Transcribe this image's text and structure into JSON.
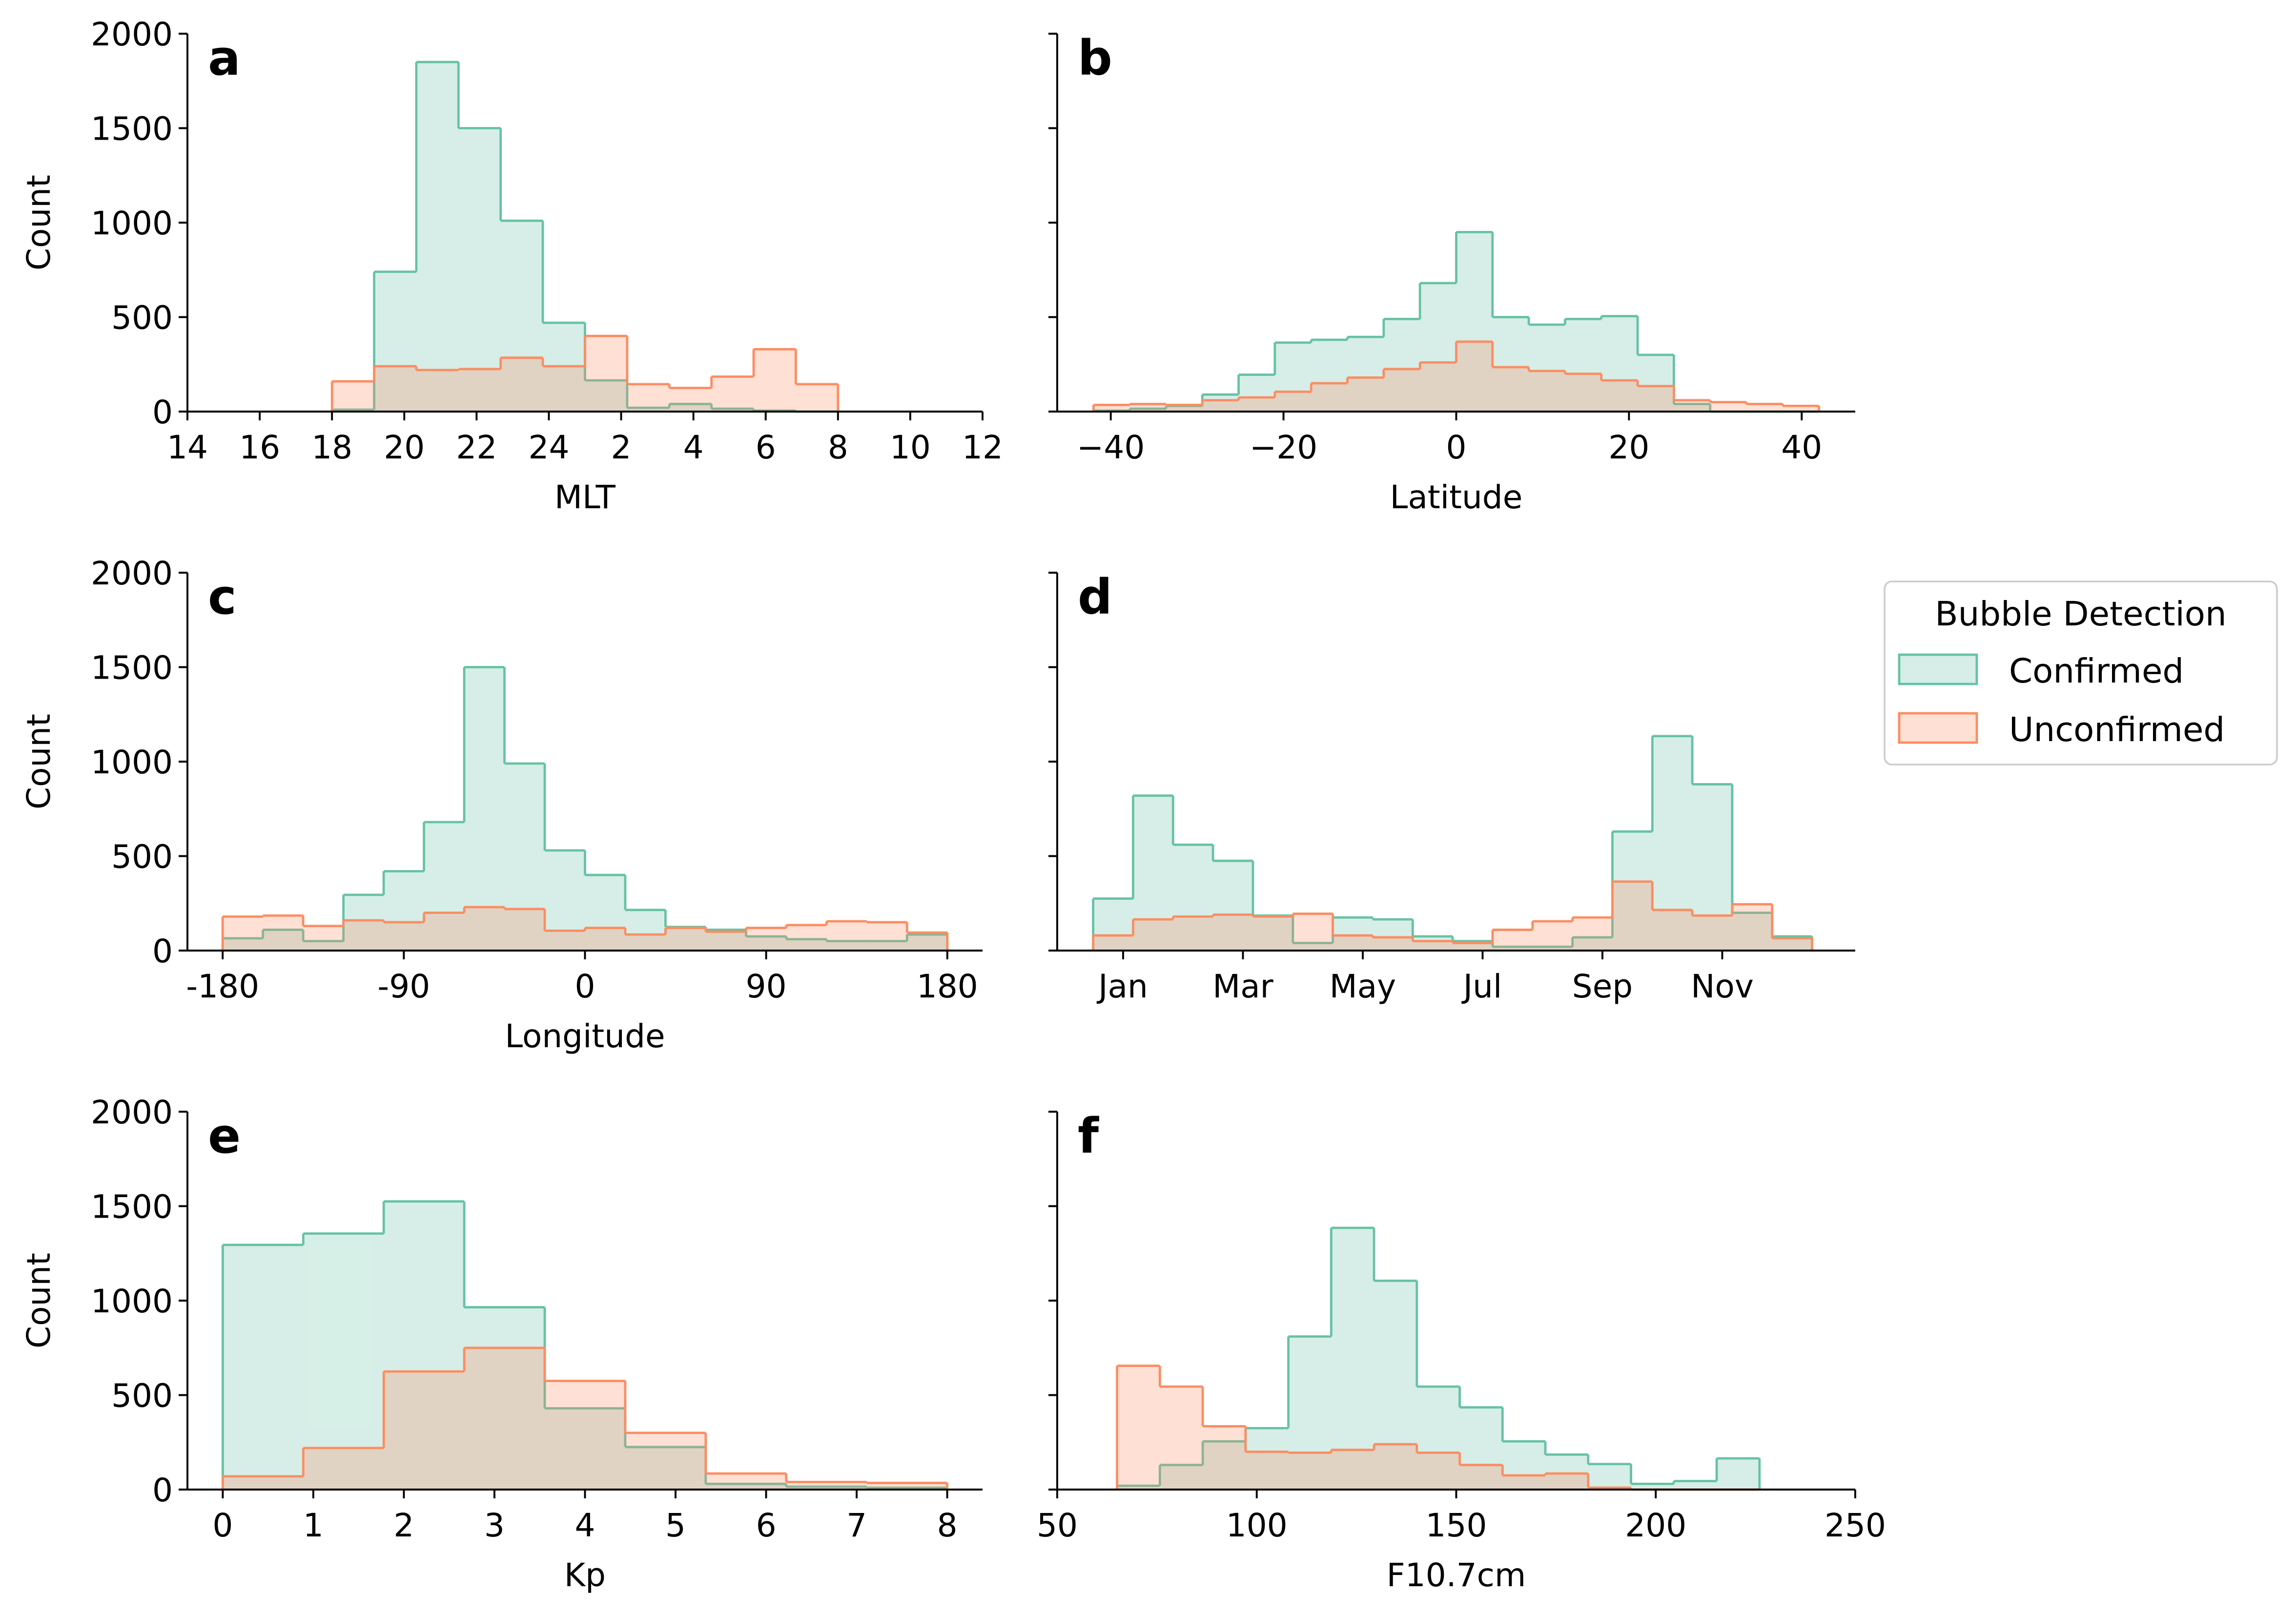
{
  "chart_data": [
    {
      "type": "histogram",
      "label": "a",
      "xlabel": "MLT",
      "ylabel": "Count",
      "bins": [
        18,
        19.1667,
        20.3333,
        21.5,
        22.6667,
        23.8333,
        25,
        26.1667,
        27.3333,
        28.5,
        29.6667,
        30.8333,
        32
      ],
      "series": [
        {
          "name": "Confirmed",
          "color": "#66c2a5",
          "values": [
            10,
            740,
            1850,
            1500,
            1010,
            470,
            165,
            20,
            40,
            15,
            5,
            0
          ]
        },
        {
          "name": "Unconfirmed",
          "color": "#fc8d62",
          "values": [
            160,
            240,
            220,
            225,
            285,
            240,
            400,
            145,
            125,
            185,
            330,
            145
          ]
        }
      ],
      "xlim": [
        14,
        36
      ],
      "xticks": [
        14,
        16,
        18,
        20,
        22,
        24,
        {
          "value": 26,
          "label": "2"
        },
        {
          "value": 28,
          "label": "4"
        },
        {
          "value": 30,
          "label": "6"
        },
        {
          "value": 32,
          "label": "8"
        },
        {
          "value": 34,
          "label": "10"
        },
        {
          "value": 36,
          "label": "12"
        }
      ],
      "ylim": [
        0,
        2000
      ],
      "yticks": [
        0,
        500,
        1000,
        1500,
        2000
      ]
    },
    {
      "type": "histogram",
      "label": "b",
      "xlabel": "Latitude",
      "sharey": true,
      "bins": [
        -42,
        -37.8,
        -33.6,
        -29.4,
        -25.2,
        -21,
        -16.8,
        -12.6,
        -8.4,
        -4.2,
        0,
        4.2,
        8.4,
        12.6,
        16.8,
        21,
        25.2,
        29.4,
        33.6,
        37.8,
        42
      ],
      "series": [
        {
          "name": "Confirmed",
          "color": "#66c2a5",
          "values": [
            5,
            15,
            30,
            90,
            195,
            365,
            380,
            395,
            490,
            680,
            950,
            500,
            460,
            490,
            505,
            300,
            40,
            0,
            0,
            0
          ]
        },
        {
          "name": "Unconfirmed",
          "color": "#fc8d62",
          "values": [
            35,
            40,
            35,
            60,
            75,
            105,
            150,
            180,
            225,
            260,
            370,
            235,
            215,
            200,
            165,
            135,
            60,
            50,
            40,
            30
          ]
        }
      ],
      "xlim": [
        -46.2,
        46.2
      ],
      "xticks": [
        {
          "value": -40,
          "label": "−40"
        },
        {
          "value": -20,
          "label": "−20"
        },
        0,
        20,
        40
      ],
      "ylim": [
        0,
        2000
      ],
      "yticks": [
        0,
        500,
        1000,
        1500,
        2000
      ]
    },
    {
      "type": "histogram",
      "label": "c",
      "xlabel": "Longitude",
      "ylabel": "Count",
      "bins": [
        -180,
        -160,
        -140,
        -120,
        -100,
        -80,
        -60,
        -40,
        -20,
        0,
        20,
        40,
        60,
        80,
        100,
        120,
        140,
        160,
        180
      ],
      "series": [
        {
          "name": "Confirmed",
          "color": "#66c2a5",
          "values": [
            65,
            110,
            50,
            295,
            420,
            680,
            1500,
            990,
            530,
            400,
            215,
            125,
            110,
            75,
            60,
            50,
            50,
            85
          ]
        },
        {
          "name": "Unconfirmed",
          "color": "#fc8d62",
          "values": [
            180,
            185,
            130,
            160,
            150,
            200,
            230,
            220,
            105,
            120,
            85,
            120,
            100,
            120,
            135,
            155,
            150,
            95
          ]
        }
      ],
      "xlim": [
        -197.5,
        197.5
      ],
      "xticks": [
        -180,
        -90,
        0,
        90,
        180
      ],
      "ylim": [
        0,
        2000
      ],
      "yticks": [
        0,
        500,
        1000,
        1500,
        2000
      ]
    },
    {
      "type": "histogram",
      "label": "d",
      "sharey": true,
      "bins": [
        0.5,
        1.1667,
        1.8333,
        2.5,
        3.1667,
        3.8333,
        4.5,
        5.1667,
        5.8333,
        6.5,
        7.1667,
        7.8333,
        8.5,
        9.1667,
        9.8333,
        10.5,
        11.1667,
        11.8333,
        12.5
      ],
      "series": [
        {
          "name": "Confirmed",
          "color": "#66c2a5",
          "values": [
            275,
            820,
            560,
            475,
            185,
            40,
            175,
            165,
            75,
            50,
            20,
            20,
            70,
            630,
            1135,
            880,
            200,
            75
          ]
        },
        {
          "name": "Unconfirmed",
          "color": "#fc8d62",
          "values": [
            80,
            165,
            180,
            190,
            180,
            195,
            80,
            70,
            50,
            40,
            110,
            155,
            175,
            365,
            215,
            185,
            245,
            65
          ]
        }
      ],
      "xlim": [
        -0.1,
        13.22
      ],
      "xticks": [
        {
          "value": 1,
          "label": "Jan"
        },
        {
          "value": 3,
          "label": "Mar"
        },
        {
          "value": 5,
          "label": "May"
        },
        {
          "value": 7,
          "label": "Jul"
        },
        {
          "value": 9,
          "label": "Sep"
        },
        {
          "value": 11,
          "label": "Nov"
        }
      ],
      "ylim": [
        0,
        2000
      ],
      "yticks": [
        0,
        500,
        1000,
        1500,
        2000
      ]
    },
    {
      "type": "histogram",
      "label": "e",
      "xlabel": "Kp",
      "ylabel": "Count",
      "bins": [
        0,
        0.8889,
        1.7778,
        2.6667,
        3.5556,
        4.4444,
        5.3333,
        6.2222,
        7.1111,
        8
      ],
      "series": [
        {
          "name": "Confirmed",
          "color": "#66c2a5",
          "values": [
            1295,
            1355,
            1525,
            965,
            430,
            225,
            30,
            15,
            10
          ]
        },
        {
          "name": "Unconfirmed",
          "color": "#fc8d62",
          "values": [
            70,
            220,
            625,
            750,
            575,
            300,
            85,
            40,
            35
          ]
        }
      ],
      "xlim": [
        -0.39,
        8.39
      ],
      "xticks": [
        0,
        1,
        2,
        3,
        4,
        5,
        6,
        7,
        8
      ],
      "ylim": [
        0,
        2000
      ],
      "yticks": [
        0,
        500,
        1000,
        1500,
        2000
      ]
    },
    {
      "type": "histogram",
      "label": "f",
      "xlabel": "F10.7cm",
      "sharey": true,
      "bins": [
        65,
        75.73,
        86.47,
        97.2,
        107.93,
        118.67,
        129.4,
        140.13,
        150.87,
        161.6,
        172.33,
        183.07,
        193.8,
        204.53,
        215.27,
        226
      ],
      "series": [
        {
          "name": "Confirmed",
          "color": "#66c2a5",
          "values": [
            20,
            130,
            255,
            325,
            810,
            1385,
            1105,
            545,
            435,
            255,
            185,
            135,
            30,
            45,
            165
          ]
        },
        {
          "name": "Unconfirmed",
          "color": "#fc8d62",
          "values": [
            655,
            545,
            335,
            200,
            195,
            210,
            240,
            195,
            130,
            75,
            85,
            10,
            0,
            0,
            0
          ]
        }
      ],
      "xlim": [
        50,
        250
      ],
      "xticks": [
        50,
        100,
        150,
        200,
        250
      ],
      "ylim": [
        0,
        2000
      ],
      "yticks": [
        0,
        500,
        1000,
        1500,
        2000
      ]
    }
  ],
  "legend": {
    "title": "Bubble Detection",
    "position": "right"
  }
}
